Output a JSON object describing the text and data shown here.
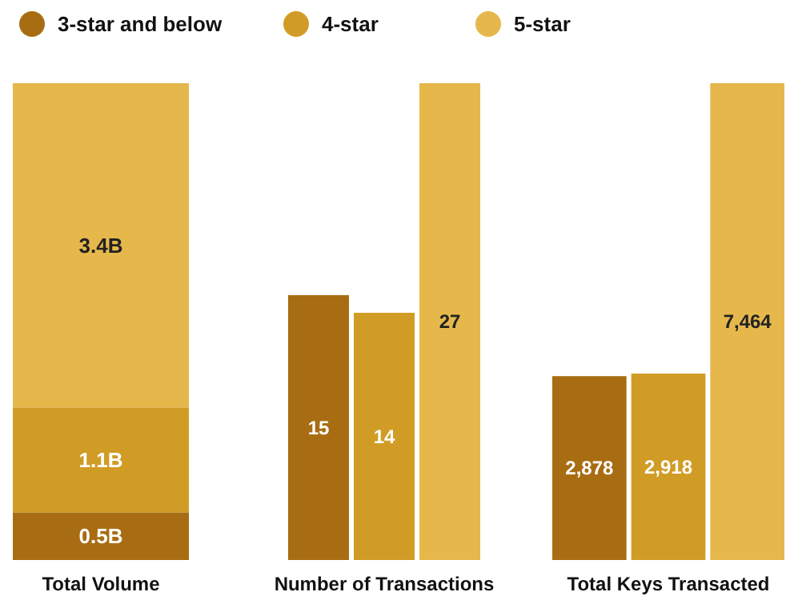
{
  "chart_data": [
    {
      "type": "bar",
      "stacked": true,
      "xlabel": "Total Volume",
      "categories": [
        null
      ],
      "legend": "top",
      "series": [
        {
          "name": "3-star and below",
          "color": "#a86d12",
          "values": [
            0.5
          ],
          "value_labels": [
            "0.5B"
          ]
        },
        {
          "name": "4-star",
          "color": "#d09c25",
          "values": [
            1.1
          ],
          "value_labels": [
            "1.1B"
          ]
        },
        {
          "name": "5-star",
          "color": "#e6b84c",
          "values": [
            3.4
          ],
          "value_labels": [
            "3.4B"
          ]
        }
      ]
    },
    {
      "type": "bar",
      "xlabel": "Number of Transactions",
      "categories": [
        null
      ],
      "series": [
        {
          "color": "#a86d12",
          "values": [
            15
          ],
          "value_labels": [
            "15"
          ]
        },
        {
          "color": "#d09c25",
          "values": [
            14
          ],
          "value_labels": [
            "14"
          ]
        },
        {
          "color": "#e6b84c",
          "values": [
            27
          ],
          "value_labels": [
            "27"
          ]
        }
      ]
    },
    {
      "type": "bar",
      "xlabel": "Total Keys Transacted",
      "categories": [
        null
      ],
      "series": [
        {
          "color": "#a86d12",
          "values": [
            2878
          ],
          "value_labels": [
            "2,878"
          ]
        },
        {
          "color": "#d09c25",
          "values": [
            2918
          ],
          "value_labels": [
            "2,918"
          ]
        },
        {
          "color": "#e6b84c",
          "values": [
            7464
          ],
          "value_labels": [
            "7,464"
          ]
        }
      ]
    }
  ]
}
